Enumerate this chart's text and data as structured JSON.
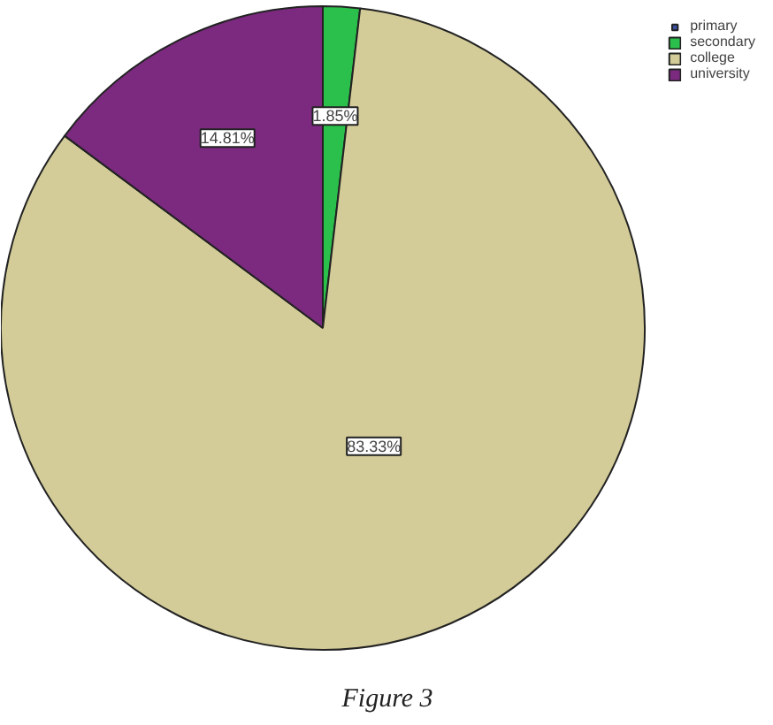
{
  "chart_data": {
    "type": "pie",
    "title": "Figure 3",
    "categories": [
      "primary",
      "secondary",
      "college",
      "university"
    ],
    "values": [
      0,
      1.85,
      83.33,
      14.81
    ],
    "colors": [
      "#3c4f9e",
      "#2bbf4b",
      "#d3cc98",
      "#7b2a7f"
    ],
    "value_labels": [
      null,
      "1.85%",
      "83.33%",
      "14.81%"
    ],
    "legend": "top right"
  }
}
